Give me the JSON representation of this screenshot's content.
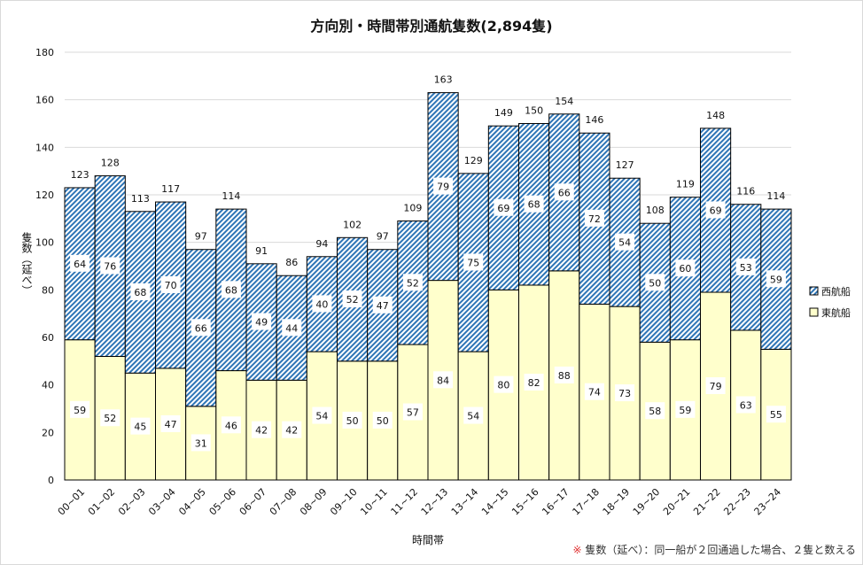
{
  "chart_data": {
    "type": "bar",
    "stacked": true,
    "title": "方向別・時間帯別通航隻数(2,894隻)",
    "xlabel": "時間帯",
    "ylabel": "隻数（延べ）",
    "ylim": [
      0,
      180
    ],
    "yticks": [
      0,
      20,
      40,
      60,
      80,
      100,
      120,
      140,
      160,
      180
    ],
    "grid": true,
    "legend_position": "right",
    "categories": [
      "00~01",
      "01~02",
      "02~03",
      "03~04",
      "04~05",
      "05~06",
      "06~07",
      "07~08",
      "08~09",
      "09~10",
      "10~11",
      "11~12",
      "12~13",
      "13~14",
      "14~15",
      "15~16",
      "16~17",
      "17~18",
      "18~19",
      "19~20",
      "20~21",
      "21~22",
      "22~23",
      "23~24"
    ],
    "series": [
      {
        "name": "東航船",
        "color": "#ffffcc",
        "values": [
          59,
          52,
          45,
          47,
          31,
          46,
          42,
          42,
          54,
          50,
          50,
          57,
          84,
          54,
          80,
          82,
          88,
          74,
          73,
          58,
          59,
          79,
          63,
          55
        ]
      },
      {
        "name": "西航船",
        "color": "#2e75b6",
        "pattern": "hatch",
        "values": [
          64,
          76,
          68,
          70,
          66,
          68,
          49,
          44,
          40,
          52,
          47,
          52,
          79,
          75,
          69,
          68,
          66,
          72,
          54,
          50,
          60,
          69,
          53,
          59
        ]
      }
    ],
    "totals": [
      123,
      128,
      113,
      117,
      97,
      114,
      91,
      86,
      94,
      102,
      97,
      109,
      163,
      129,
      149,
      150,
      154,
      146,
      127,
      108,
      119,
      148,
      116,
      114
    ]
  },
  "footnote": {
    "mark": "※",
    "text": " 隻数（延べ）：同一船が２回通過した場合、２隻と数える"
  }
}
